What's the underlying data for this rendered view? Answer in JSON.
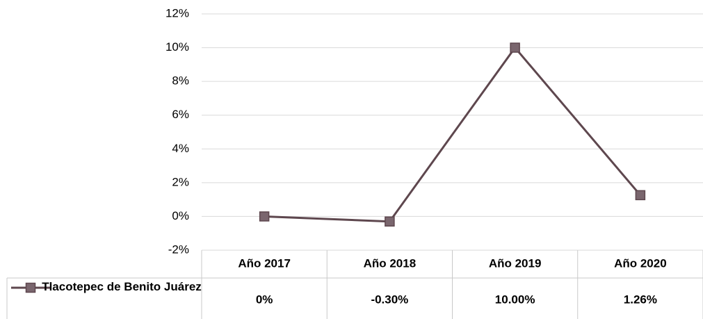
{
  "chart_data": {
    "type": "line",
    "categories": [
      "Año 2017",
      "Año 2018",
      "Año 2019",
      "Año 2020"
    ],
    "series": [
      {
        "name": "Tlacotepec de Benito Juárez",
        "color": "#5e474e",
        "marker_color": "#7a666e",
        "values": [
          0,
          -0.3,
          10,
          1.26
        ],
        "value_labels": [
          "0%",
          "-0.30%",
          "10.00%",
          "1.26%"
        ]
      }
    ],
    "ylim": [
      -2,
      12
    ],
    "yticks": [
      {
        "value": -2,
        "label": "-2%"
      },
      {
        "value": 0,
        "label": "0%"
      },
      {
        "value": 2,
        "label": "2%"
      },
      {
        "value": 4,
        "label": "4%"
      },
      {
        "value": 6,
        "label": "6%"
      },
      {
        "value": 8,
        "label": "8%"
      },
      {
        "value": 10,
        "label": "10%"
      },
      {
        "value": 12,
        "label": "12%"
      }
    ],
    "grid": true
  }
}
